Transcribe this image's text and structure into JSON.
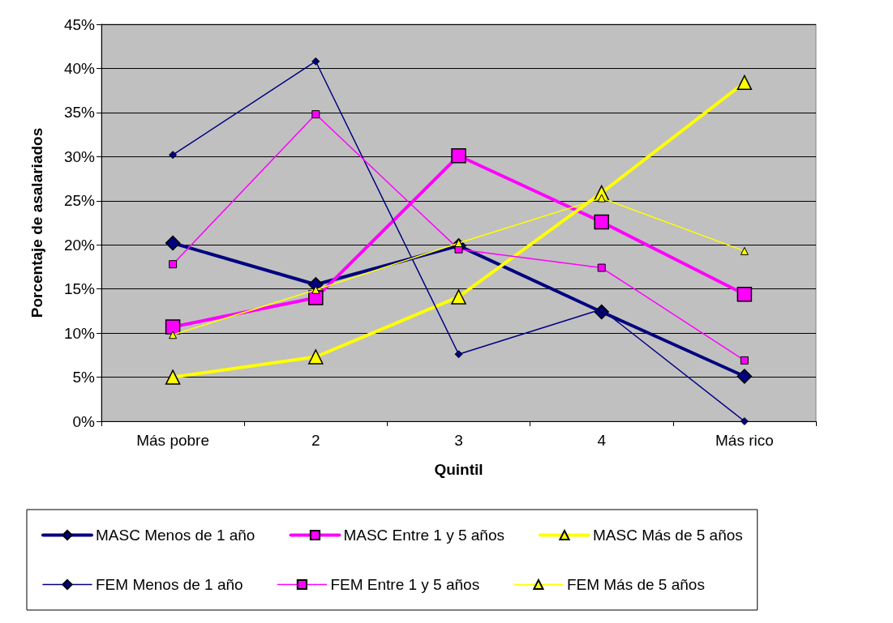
{
  "chart_data": {
    "type": "line",
    "xlabel": "Quintil",
    "ylabel": "Porcentaje de asalariados",
    "categories": [
      "Más pobre",
      "2",
      "3",
      "4",
      "Más rico"
    ],
    "ylim": [
      0,
      45
    ],
    "yticks": [
      {
        "value": 0,
        "label": "0%"
      },
      {
        "value": 5,
        "label": "5%"
      },
      {
        "value": 10,
        "label": "10%"
      },
      {
        "value": 15,
        "label": "15%"
      },
      {
        "value": 20,
        "label": "20%"
      },
      {
        "value": 25,
        "label": "25%"
      },
      {
        "value": 30,
        "label": "30%"
      },
      {
        "value": 35,
        "label": "35%"
      },
      {
        "value": 40,
        "label": "40%"
      },
      {
        "value": 45,
        "label": "45%"
      }
    ],
    "grid": "y",
    "legend": "bottom",
    "series": [
      {
        "name": "MASC Menos de 1 año",
        "color": "#000080",
        "marker": "diamond",
        "values": [
          20.2,
          15.5,
          19.9,
          12.4,
          5.1
        ]
      },
      {
        "name": "MASC Entre 1 y 5 años",
        "color": "#ff00ff",
        "marker": "square",
        "values": [
          10.7,
          14.0,
          30.1,
          22.6,
          14.4
        ]
      },
      {
        "name": "MASC Más de 5 años",
        "color": "#ffff00",
        "marker": "triangle",
        "values": [
          5.0,
          7.3,
          14.1,
          25.9,
          38.4
        ]
      },
      {
        "name": "FEM Menos de 1 año",
        "color": "#000080",
        "marker": "diamond",
        "values": [
          30.2,
          40.8,
          7.6,
          12.7,
          0.0
        ]
      },
      {
        "name": "FEM Entre 1 y 5 años",
        "color": "#ff00ff",
        "marker": "square",
        "values": [
          17.8,
          34.8,
          19.5,
          17.4,
          6.9
        ]
      },
      {
        "name": "FEM Más de 5 años",
        "color": "#ffff00",
        "marker": "triangle",
        "values": [
          9.8,
          14.9,
          20.2,
          25.3,
          19.3
        ]
      }
    ]
  }
}
